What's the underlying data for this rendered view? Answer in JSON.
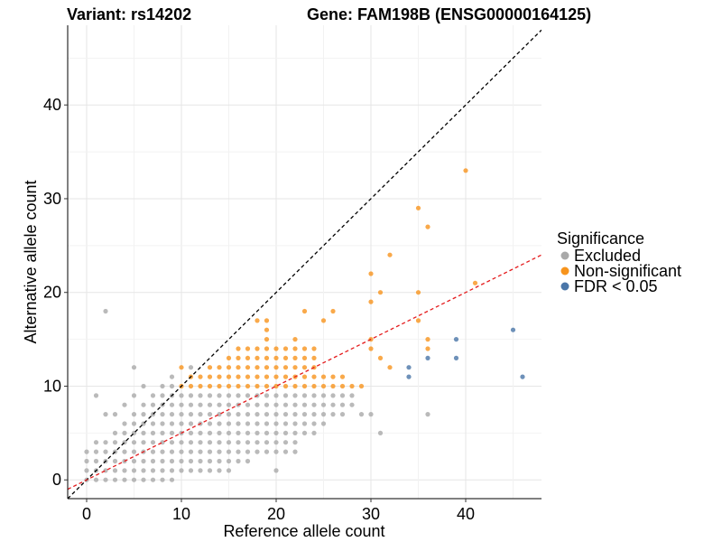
{
  "chart_data": {
    "type": "scatter",
    "title_left": "Variant: rs14202",
    "title_right": "Gene: FAM198B (ENSG00000164125)",
    "xlabel": "Reference allele count",
    "ylabel": "Alternative allele count",
    "xlim": [
      -2,
      48
    ],
    "ylim": [
      -2,
      48.5
    ],
    "xticks": [
      0,
      10,
      20,
      30,
      40
    ],
    "yticks": [
      0,
      10,
      20,
      30,
      40
    ],
    "grid": true,
    "legend": {
      "title": "Significance",
      "position": "right",
      "entries": [
        {
          "label": "Excluded",
          "color": "#a9a9a9"
        },
        {
          "label": "Non-significant",
          "color": "#f7941d"
        },
        {
          "label": "FDR < 0.05",
          "color": "#4a76a8"
        }
      ]
    },
    "reference_lines": [
      {
        "name": "identity",
        "slope": 1,
        "intercept": 0,
        "color": "#000000",
        "style": "dashed"
      },
      {
        "name": "fit",
        "slope": 0.5,
        "intercept": 0,
        "color": "#e41a1c",
        "style": "dashed"
      }
    ],
    "series": [
      {
        "name": "Excluded",
        "color": "#a9a9a9",
        "points": [
          [
            0,
            0
          ],
          [
            0,
            1
          ],
          [
            0,
            2
          ],
          [
            0,
            3
          ],
          [
            1,
            0
          ],
          [
            1,
            1
          ],
          [
            1,
            2
          ],
          [
            1,
            3
          ],
          [
            1,
            4
          ],
          [
            1,
            9
          ],
          [
            2,
            0
          ],
          [
            2,
            1
          ],
          [
            2,
            2
          ],
          [
            2,
            3
          ],
          [
            2,
            4
          ],
          [
            2,
            7
          ],
          [
            2,
            18
          ],
          [
            3,
            0
          ],
          [
            3,
            1
          ],
          [
            3,
            2
          ],
          [
            3,
            3
          ],
          [
            3,
            4
          ],
          [
            3,
            5
          ],
          [
            3,
            7
          ],
          [
            4,
            0
          ],
          [
            4,
            1
          ],
          [
            4,
            2
          ],
          [
            4,
            3
          ],
          [
            4,
            4
          ],
          [
            4,
            5
          ],
          [
            4,
            6
          ],
          [
            4,
            8
          ],
          [
            5,
            0
          ],
          [
            5,
            1
          ],
          [
            5,
            2
          ],
          [
            5,
            3
          ],
          [
            5,
            4
          ],
          [
            5,
            5
          ],
          [
            5,
            6
          ],
          [
            5,
            7
          ],
          [
            5,
            9
          ],
          [
            5,
            12
          ],
          [
            6,
            0
          ],
          [
            6,
            1
          ],
          [
            6,
            2
          ],
          [
            6,
            3
          ],
          [
            6,
            4
          ],
          [
            6,
            5
          ],
          [
            6,
            6
          ],
          [
            6,
            7
          ],
          [
            6,
            8
          ],
          [
            6,
            10
          ],
          [
            7,
            0
          ],
          [
            7,
            1
          ],
          [
            7,
            2
          ],
          [
            7,
            3
          ],
          [
            7,
            4
          ],
          [
            7,
            5
          ],
          [
            7,
            6
          ],
          [
            7,
            7
          ],
          [
            7,
            8
          ],
          [
            7,
            9
          ],
          [
            8,
            0
          ],
          [
            8,
            1
          ],
          [
            8,
            2
          ],
          [
            8,
            3
          ],
          [
            8,
            4
          ],
          [
            8,
            5
          ],
          [
            8,
            6
          ],
          [
            8,
            7
          ],
          [
            8,
            8
          ],
          [
            8,
            9
          ],
          [
            8,
            10
          ],
          [
            9,
            0
          ],
          [
            9,
            1
          ],
          [
            9,
            2
          ],
          [
            9,
            3
          ],
          [
            9,
            4
          ],
          [
            9,
            5
          ],
          [
            9,
            6
          ],
          [
            9,
            7
          ],
          [
            9,
            8
          ],
          [
            9,
            9
          ],
          [
            9,
            10
          ],
          [
            9,
            11
          ],
          [
            10,
            1
          ],
          [
            10,
            2
          ],
          [
            10,
            3
          ],
          [
            10,
            4
          ],
          [
            10,
            5
          ],
          [
            10,
            6
          ],
          [
            10,
            7
          ],
          [
            10,
            8
          ],
          [
            10,
            9
          ],
          [
            11,
            1
          ],
          [
            11,
            2
          ],
          [
            11,
            3
          ],
          [
            11,
            4
          ],
          [
            11,
            5
          ],
          [
            11,
            6
          ],
          [
            11,
            7
          ],
          [
            11,
            8
          ],
          [
            11,
            9
          ],
          [
            11,
            12
          ],
          [
            12,
            1
          ],
          [
            12,
            2
          ],
          [
            12,
            3
          ],
          [
            12,
            4
          ],
          [
            12,
            5
          ],
          [
            12,
            6
          ],
          [
            12,
            7
          ],
          [
            12,
            8
          ],
          [
            12,
            9
          ],
          [
            13,
            1
          ],
          [
            13,
            2
          ],
          [
            13,
            3
          ],
          [
            13,
            4
          ],
          [
            13,
            5
          ],
          [
            13,
            6
          ],
          [
            13,
            7
          ],
          [
            13,
            8
          ],
          [
            13,
            9
          ],
          [
            14,
            1
          ],
          [
            14,
            2
          ],
          [
            14,
            3
          ],
          [
            14,
            4
          ],
          [
            14,
            5
          ],
          [
            14,
            6
          ],
          [
            14,
            7
          ],
          [
            14,
            8
          ],
          [
            14,
            9
          ],
          [
            15,
            1
          ],
          [
            15,
            2
          ],
          [
            15,
            3
          ],
          [
            15,
            4
          ],
          [
            15,
            5
          ],
          [
            15,
            6
          ],
          [
            15,
            7
          ],
          [
            15,
            8
          ],
          [
            15,
            9
          ],
          [
            16,
            2
          ],
          [
            16,
            3
          ],
          [
            16,
            4
          ],
          [
            16,
            5
          ],
          [
            16,
            6
          ],
          [
            16,
            7
          ],
          [
            16,
            8
          ],
          [
            16,
            9
          ],
          [
            17,
            2
          ],
          [
            17,
            3
          ],
          [
            17,
            4
          ],
          [
            17,
            5
          ],
          [
            17,
            6
          ],
          [
            17,
            7
          ],
          [
            17,
            8
          ],
          [
            17,
            9
          ],
          [
            18,
            3
          ],
          [
            18,
            4
          ],
          [
            18,
            5
          ],
          [
            18,
            6
          ],
          [
            18,
            7
          ],
          [
            18,
            8
          ],
          [
            18,
            9
          ],
          [
            19,
            3
          ],
          [
            19,
            4
          ],
          [
            19,
            5
          ],
          [
            19,
            6
          ],
          [
            19,
            7
          ],
          [
            19,
            8
          ],
          [
            19,
            9
          ],
          [
            20,
            1
          ],
          [
            20,
            3
          ],
          [
            20,
            4
          ],
          [
            20,
            5
          ],
          [
            20,
            6
          ],
          [
            20,
            7
          ],
          [
            20,
            8
          ],
          [
            20,
            9
          ],
          [
            21,
            3
          ],
          [
            21,
            4
          ],
          [
            21,
            5
          ],
          [
            21,
            6
          ],
          [
            21,
            7
          ],
          [
            21,
            8
          ],
          [
            21,
            9
          ],
          [
            22,
            3
          ],
          [
            22,
            4
          ],
          [
            22,
            5
          ],
          [
            22,
            6
          ],
          [
            22,
            7
          ],
          [
            22,
            8
          ],
          [
            22,
            9
          ],
          [
            23,
            5
          ],
          [
            23,
            6
          ],
          [
            23,
            7
          ],
          [
            23,
            8
          ],
          [
            23,
            9
          ],
          [
            24,
            5
          ],
          [
            24,
            6
          ],
          [
            24,
            7
          ],
          [
            24,
            8
          ],
          [
            24,
            9
          ],
          [
            25,
            6
          ],
          [
            25,
            7
          ],
          [
            25,
            8
          ],
          [
            25,
            9
          ],
          [
            26,
            7
          ],
          [
            26,
            8
          ],
          [
            26,
            9
          ],
          [
            27,
            7
          ],
          [
            27,
            8
          ],
          [
            27,
            9
          ],
          [
            28,
            8
          ],
          [
            28,
            9
          ],
          [
            29,
            7
          ],
          [
            30,
            7
          ],
          [
            31,
            5
          ],
          [
            36,
            7
          ]
        ]
      },
      {
        "name": "Non-significant",
        "color": "#f7941d",
        "points": [
          [
            10,
            10
          ],
          [
            10,
            12
          ],
          [
            11,
            10
          ],
          [
            11,
            11
          ],
          [
            12,
            10
          ],
          [
            12,
            11
          ],
          [
            13,
            10
          ],
          [
            13,
            11
          ],
          [
            13,
            12
          ],
          [
            14,
            10
          ],
          [
            14,
            11
          ],
          [
            14,
            12
          ],
          [
            15,
            10
          ],
          [
            15,
            11
          ],
          [
            15,
            12
          ],
          [
            15,
            13
          ],
          [
            16,
            10
          ],
          [
            16,
            11
          ],
          [
            16,
            12
          ],
          [
            16,
            13
          ],
          [
            16,
            14
          ],
          [
            17,
            10
          ],
          [
            17,
            11
          ],
          [
            17,
            12
          ],
          [
            17,
            13
          ],
          [
            17,
            14
          ],
          [
            18,
            10
          ],
          [
            18,
            11
          ],
          [
            18,
            12
          ],
          [
            18,
            13
          ],
          [
            18,
            14
          ],
          [
            18,
            17
          ],
          [
            19,
            10
          ],
          [
            19,
            11
          ],
          [
            19,
            12
          ],
          [
            19,
            13
          ],
          [
            19,
            14
          ],
          [
            19,
            15
          ],
          [
            19,
            16
          ],
          [
            19,
            17
          ],
          [
            20,
            10
          ],
          [
            20,
            11
          ],
          [
            20,
            12
          ],
          [
            20,
            13
          ],
          [
            20,
            14
          ],
          [
            21,
            10
          ],
          [
            21,
            11
          ],
          [
            21,
            12
          ],
          [
            21,
            13
          ],
          [
            21,
            14
          ],
          [
            22,
            10
          ],
          [
            22,
            11
          ],
          [
            22,
            12
          ],
          [
            22,
            13
          ],
          [
            22,
            14
          ],
          [
            22,
            15
          ],
          [
            23,
            10
          ],
          [
            23,
            11
          ],
          [
            23,
            12
          ],
          [
            23,
            13
          ],
          [
            23,
            14
          ],
          [
            23,
            18
          ],
          [
            24,
            10
          ],
          [
            24,
            11
          ],
          [
            24,
            12
          ],
          [
            24,
            13
          ],
          [
            24,
            14
          ],
          [
            25,
            10
          ],
          [
            25,
            11
          ],
          [
            25,
            17
          ],
          [
            26,
            10
          ],
          [
            26,
            11
          ],
          [
            26,
            18
          ],
          [
            27,
            10
          ],
          [
            27,
            11
          ],
          [
            28,
            10
          ],
          [
            29,
            10
          ],
          [
            30,
            14
          ],
          [
            30,
            15
          ],
          [
            30,
            19
          ],
          [
            30,
            22
          ],
          [
            31,
            13
          ],
          [
            31,
            20
          ],
          [
            32,
            12
          ],
          [
            32,
            24
          ],
          [
            35,
            20
          ],
          [
            35,
            17
          ],
          [
            35,
            29
          ],
          [
            36,
            14
          ],
          [
            36,
            15
          ],
          [
            36,
            27
          ],
          [
            40,
            33
          ],
          [
            41,
            21
          ]
        ]
      },
      {
        "name": "FDR < 0.05",
        "color": "#4a76a8",
        "points": [
          [
            34,
            12
          ],
          [
            34,
            11
          ],
          [
            36,
            13
          ],
          [
            39,
            15
          ],
          [
            39,
            13
          ],
          [
            45,
            16
          ],
          [
            46,
            11
          ]
        ]
      }
    ]
  }
}
